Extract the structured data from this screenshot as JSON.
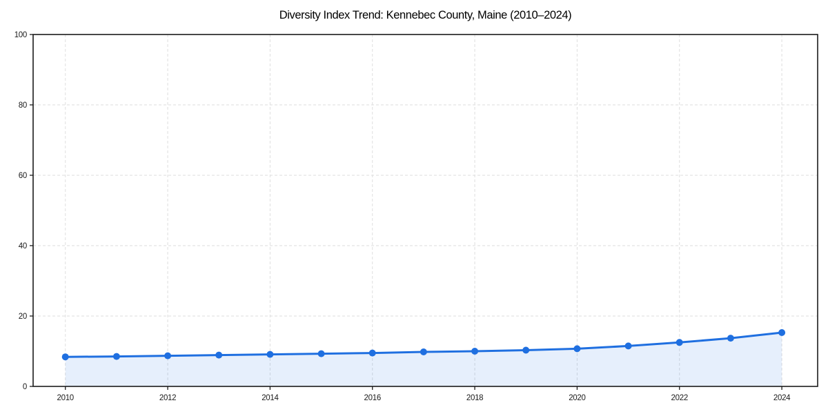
{
  "chart_data": {
    "type": "line",
    "title": "Diversity Index Trend: Kennebec County, Maine (2010–2024)",
    "x": [
      2010,
      2011,
      2012,
      2013,
      2014,
      2015,
      2016,
      2017,
      2018,
      2019,
      2020,
      2021,
      2022,
      2023,
      2024
    ],
    "series": [
      {
        "name": "Diversity Index",
        "values": [
          8.4,
          8.5,
          8.7,
          8.9,
          9.1,
          9.3,
          9.5,
          9.8,
          10.0,
          10.3,
          10.7,
          11.5,
          12.5,
          13.7,
          15.3
        ]
      }
    ],
    "xlabel": "",
    "ylabel": "",
    "xlim": [
      2009.37,
      2024.7
    ],
    "ylim": [
      0,
      100
    ],
    "xticks": [
      2010,
      2012,
      2014,
      2016,
      2018,
      2020,
      2022,
      2024
    ],
    "yticks": [
      0,
      20,
      40,
      60,
      80,
      100
    ],
    "grid": true,
    "grid_style": "dashed",
    "legend_position": "none",
    "area_fill": true,
    "marker": "circle",
    "colors": {
      "line": "#1f6fe0",
      "marker": "#1f6fe0",
      "fill": "rgba(31,111,224,0.11)",
      "grid": "#dedede",
      "axis": "#1a1a1a",
      "tick_label": "#1a1a1a",
      "title": "#000000",
      "background": "#ffffff"
    }
  }
}
